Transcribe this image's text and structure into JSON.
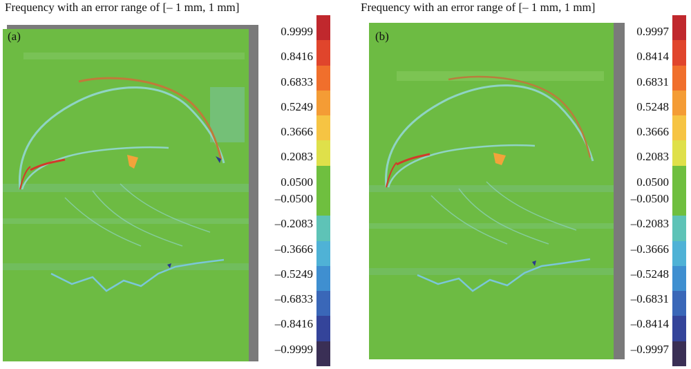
{
  "panels": [
    {
      "title": "Frequency with an error range of [– 1 mm, 1 mm]",
      "label": "(a)",
      "ticks": [
        "0.9999",
        "0.8416",
        "0.6833",
        "0.5249",
        "0.3666",
        "0.2083",
        "0.0500",
        "–0.0500",
        "–0.2083",
        "–0.3666",
        "–0.5249",
        "–0.6833",
        "–0.8416",
        "–0.9999"
      ]
    },
    {
      "title": "Frequency with an error range of [– 1 mm, 1 mm]",
      "label": "(b)",
      "ticks": [
        "0.9997",
        "0.8414",
        "0.6831",
        "0.5248",
        "0.3666",
        "0.2083",
        "0.0500",
        "–0.0500",
        "–0.2083",
        "–0.3666",
        "–0.5248",
        "–0.6831",
        "–0.8414",
        "–0.9997"
      ]
    }
  ],
  "colorbar": {
    "colors": [
      "#c0282d",
      "#e0452c",
      "#f06f2c",
      "#f49c35",
      "#f6c443",
      "#dfe04a",
      "#6fbf3f",
      "#6fbf3f",
      "#5ec3b7",
      "#4fb2d6",
      "#3f8fd0",
      "#3a67b8",
      "#34449a",
      "#3a2f55"
    ]
  },
  "map": {
    "background_color": "#6dbb43",
    "shadow_color": "#7a7a7a"
  }
}
